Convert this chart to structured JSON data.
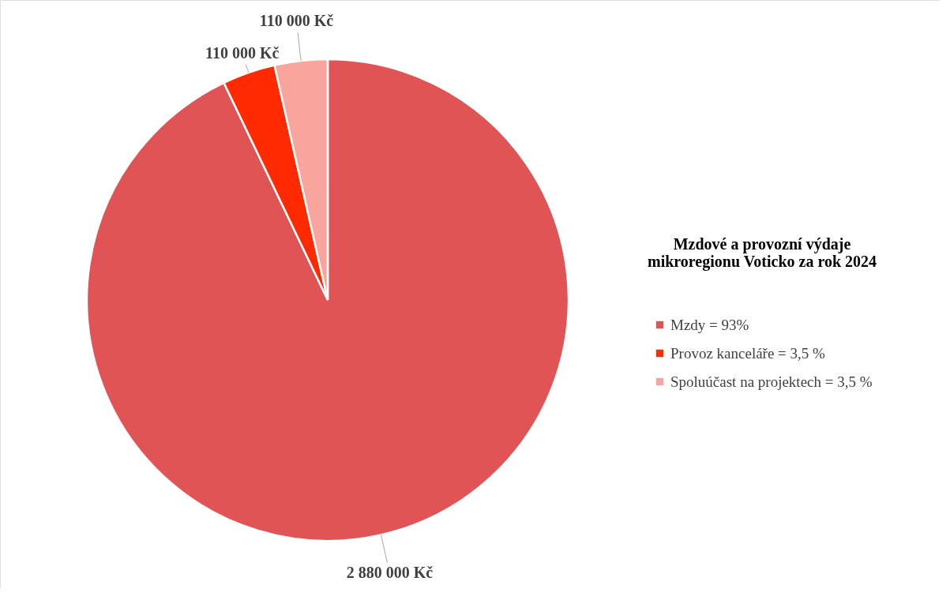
{
  "chart_data": {
    "type": "pie",
    "legend_title": "Mzdové a provozní výdaje mikroregionu Voticko za rok 2024",
    "categories": [
      "Mzdy = 93%",
      "Provoz kanceláře = 3,5 %",
      "Spoluúčast na projektech = 3,5 %"
    ],
    "values": [
      2880000,
      110000,
      110000
    ],
    "colors": [
      "#e05456",
      "#ff2a00",
      "#f9a59d"
    ],
    "value_labels": [
      "2 880 000 Kč",
      "110 000 Kč",
      "110 000 Kč"
    ],
    "legend": "right"
  }
}
